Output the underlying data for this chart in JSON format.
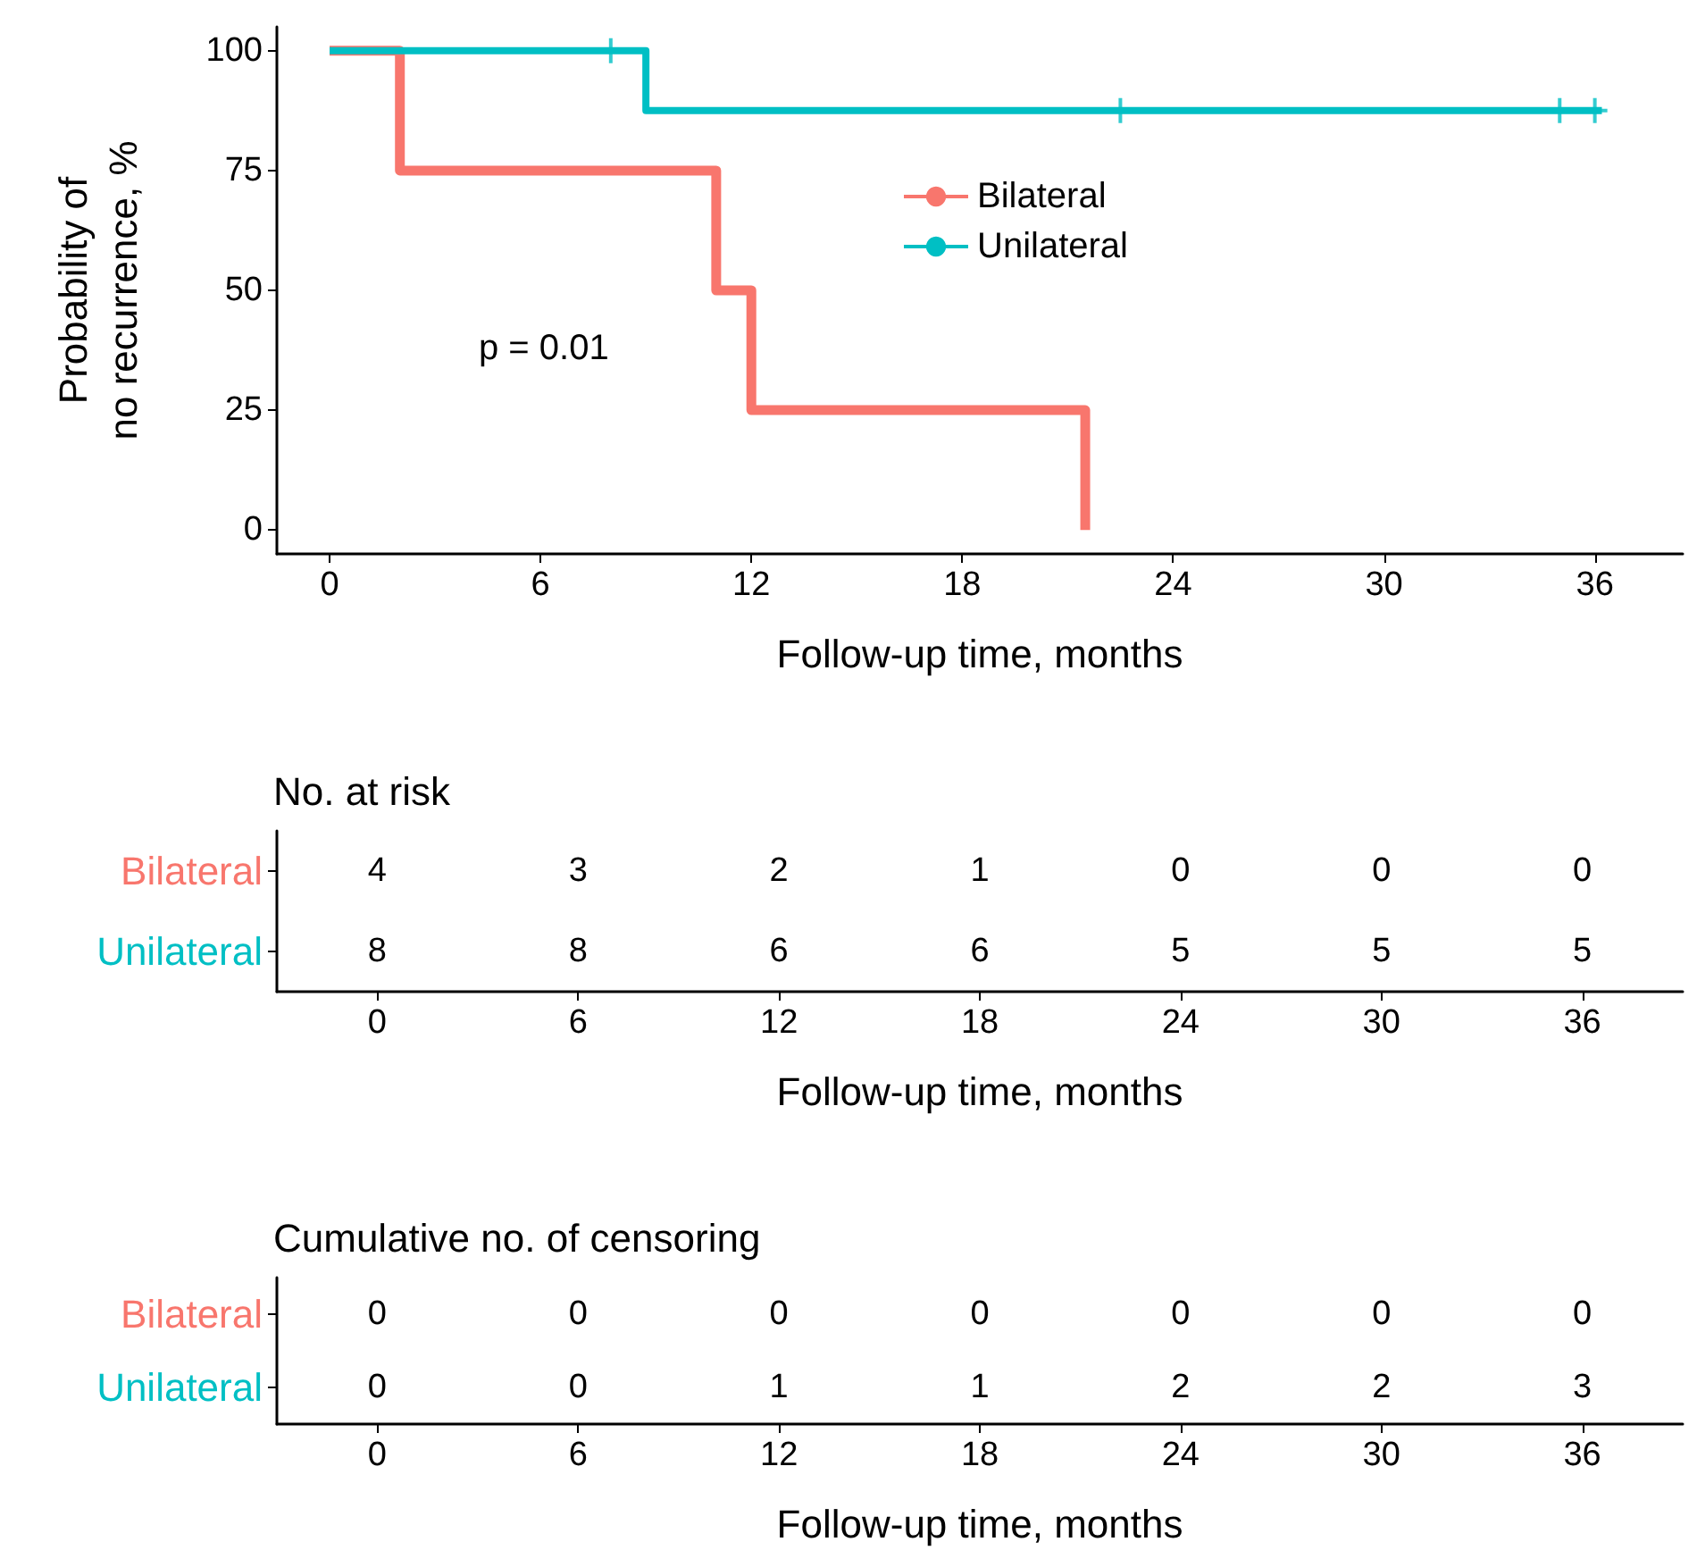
{
  "chart_data": [
    {
      "type": "step",
      "xlabel": "Follow-up time, months",
      "ylabel": "Probability of no recurrence, %",
      "xlim": [
        -1.5,
        38.5
      ],
      "xticks": [
        0,
        6,
        12,
        18,
        24,
        30,
        36
      ],
      "ylim": [
        -5,
        105
      ],
      "yticks": [
        0,
        25,
        50,
        75,
        100
      ],
      "grid": false,
      "legend": "top",
      "annotations": [
        "p = 0.01"
      ],
      "series": [
        {
          "name": "Bilateral",
          "color": "#f8766d",
          "x": [
            0,
            2,
            11,
            12,
            21.5
          ],
          "values": [
            100,
            75,
            50,
            25,
            0
          ]
        },
        {
          "name": "Unilateral",
          "color": "#00bfc4",
          "x": [
            0,
            9,
            36.2
          ],
          "values": [
            100,
            87.5,
            87.5
          ]
        },
        {
          "type": "scatter",
          "marker": "cross",
          "color": "#00bfc4",
          "x": [
            8,
            22.5,
            35,
            36
          ],
          "values": [
            100,
            87.5,
            87.5,
            87.5
          ]
        }
      ]
    },
    {
      "type": "heatmap",
      "title": "No. at risk",
      "xlabel": "Follow-up time, months",
      "categories": [
        "0",
        "6",
        "12",
        "18",
        "24",
        "30",
        "36"
      ],
      "y_categories": [
        "Bilateral",
        "Unilateral"
      ],
      "colors": [
        "#f8766d",
        "#00bfc4"
      ],
      "data_labels": true,
      "cells": [
        [
          4,
          3,
          2,
          1,
          0,
          0,
          0
        ],
        [
          8,
          8,
          6,
          6,
          5,
          5,
          5
        ]
      ]
    },
    {
      "type": "heatmap",
      "title": "Cumulative no. of censoring",
      "xlabel": "Follow-up time, months",
      "categories": [
        "0",
        "6",
        "12",
        "18",
        "24",
        "30",
        "36"
      ],
      "y_categories": [
        "Bilateral",
        "Unilateral"
      ],
      "colors": [
        "#f8766d",
        "#00bfc4"
      ],
      "data_labels": true,
      "cells": [
        [
          0,
          0,
          0,
          0,
          0,
          0,
          0
        ],
        [
          0,
          0,
          1,
          1,
          2,
          2,
          3
        ]
      ]
    }
  ]
}
